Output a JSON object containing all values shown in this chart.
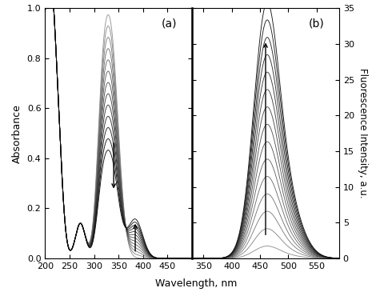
{
  "panel_a_label": "(a)",
  "panel_b_label": "(b)",
  "xlabel": "Wavelength, nm",
  "ylabel_a": "Absorbance",
  "ylabel_b": "Fluorescence Intensity, a.u.",
  "abs_xlim": [
    200,
    500
  ],
  "abs_ylim": [
    0.0,
    1.0
  ],
  "fl_xlim": [
    330,
    590
  ],
  "fl_ylim": [
    0,
    35
  ],
  "abs_xticks": [
    200,
    250,
    300,
    350,
    400,
    450
  ],
  "fl_xticks": [
    350,
    400,
    450,
    500,
    550
  ],
  "abs_yticks": [
    0.0,
    0.2,
    0.4,
    0.6,
    0.8,
    1.0
  ],
  "fl_yticks": [
    0,
    5,
    10,
    15,
    20,
    25,
    30,
    35
  ],
  "n_abs_curves": 13,
  "n_fl_curves": 15
}
